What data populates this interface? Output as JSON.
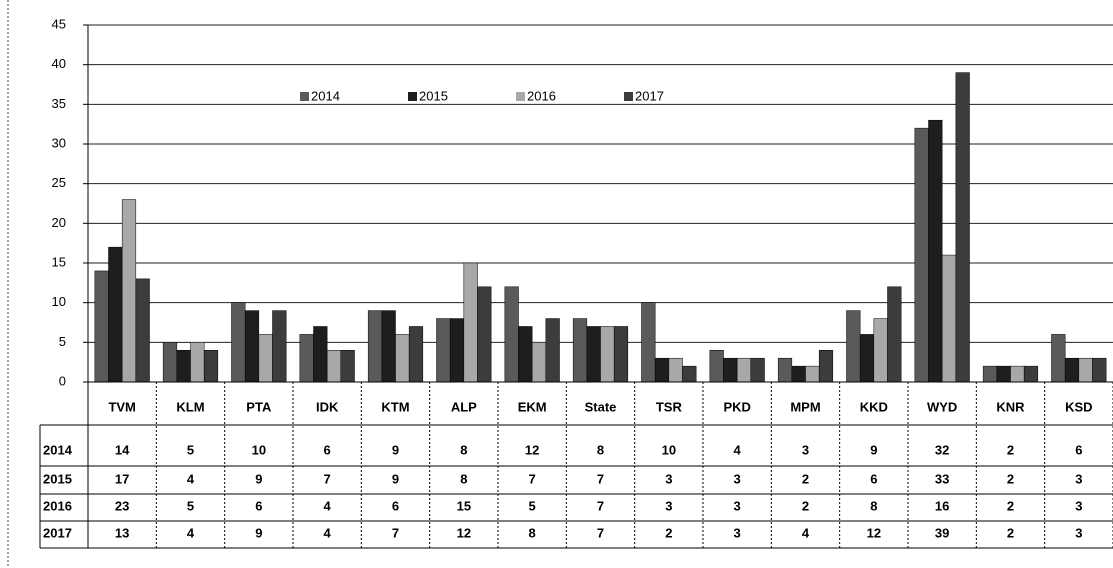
{
  "chart_data": {
    "type": "bar",
    "categories": [
      "TVM",
      "KLM",
      "PTA",
      "IDK",
      "KTM",
      "ALP",
      "EKM",
      "State",
      "TSR",
      "PKD",
      "MPM",
      "KKD",
      "WYD",
      "KNR",
      "KSD"
    ],
    "series": [
      {
        "name": "2014",
        "color": "#5a5a5a",
        "values": [
          14,
          5,
          10,
          6,
          9,
          8,
          12,
          8,
          10,
          4,
          3,
          9,
          32,
          2,
          6
        ]
      },
      {
        "name": "2015",
        "color": "#1e1e1e",
        "values": [
          17,
          4,
          9,
          7,
          9,
          8,
          7,
          7,
          3,
          3,
          2,
          6,
          33,
          2,
          3
        ]
      },
      {
        "name": "2016",
        "color": "#a8a8a8",
        "values": [
          23,
          5,
          6,
          4,
          6,
          15,
          5,
          7,
          3,
          3,
          2,
          8,
          16,
          2,
          3
        ]
      },
      {
        "name": "2017",
        "color": "#3c3c3c",
        "values": [
          13,
          4,
          9,
          4,
          7,
          12,
          8,
          7,
          2,
          3,
          4,
          12,
          39,
          2,
          3
        ]
      }
    ],
    "ylim": [
      0,
      45
    ],
    "yticks": [
      0,
      5,
      10,
      15,
      20,
      25,
      30,
      35,
      40,
      45
    ],
    "grid": true,
    "legend": "top"
  }
}
